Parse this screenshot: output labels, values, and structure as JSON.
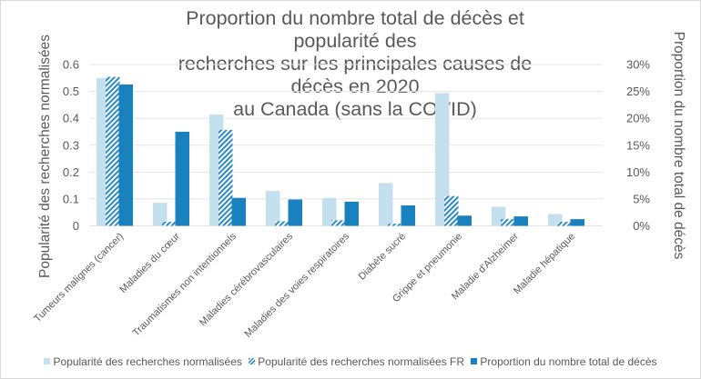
{
  "colors": {
    "light": "#c4e0ef",
    "hatch": "#2a8ac6",
    "dark": "#1a81bf",
    "grid": "#e4e4e4",
    "text": "#595959"
  },
  "chart_data": {
    "type": "bar",
    "title": "Proportion du nombre total de décès et popularité des recherches sur les principales causes de décès en 2020 au Canada (sans la COVID)",
    "title_lines": [
      "Proportion du nombre total de décès et popularité des",
      "recherches sur les principales causes de décès en 2020",
      "au Canada (sans la COVID)"
    ],
    "categories": [
      "Tumeurs malignes (cancer)",
      "Maladies du cœur",
      "Traumatismes non intentionnels",
      "Maladies cérébrovasculaires",
      "Maladies des voies respiratoires",
      "Diabète sucré",
      "Grippe et pneumonie",
      "Maladie d'Alzheimer",
      "Maladie hépatique"
    ],
    "series": [
      {
        "name": "Popularité des recherches normalisées",
        "axis": "left",
        "style": "light",
        "values": [
          0.55,
          0.086,
          0.414,
          0.13,
          0.104,
          0.159,
          0.494,
          0.071,
          0.044
        ]
      },
      {
        "name": "Popularité des recherches normalisées FR",
        "axis": "left",
        "style": "hatch",
        "values": [
          0.554,
          0.015,
          0.357,
          0.017,
          0.021,
          0.008,
          0.111,
          0.025,
          0.015
        ]
      },
      {
        "name": "Proportion du nombre total de décès",
        "axis": "right",
        "style": "dark",
        "values": [
          26.3,
          17.5,
          5.2,
          4.9,
          4.5,
          3.8,
          1.9,
          1.75,
          1.25
        ]
      }
    ],
    "ylabel": "Popularité des recherches normalisées",
    "ylabel_right": "Proportion du nombre total de décès",
    "xlabel": "",
    "ylim": [
      0,
      0.6
    ],
    "ylim_right": [
      0,
      30
    ],
    "yticks": [
      "0",
      "0.1",
      "0.2",
      "0.3",
      "0.4",
      "0.5",
      "0.6"
    ],
    "yticks_right": [
      "0%",
      "5%",
      "10%",
      "15%",
      "20%",
      "25%",
      "30%"
    ],
    "grid": true,
    "legend_position": "bottom"
  }
}
